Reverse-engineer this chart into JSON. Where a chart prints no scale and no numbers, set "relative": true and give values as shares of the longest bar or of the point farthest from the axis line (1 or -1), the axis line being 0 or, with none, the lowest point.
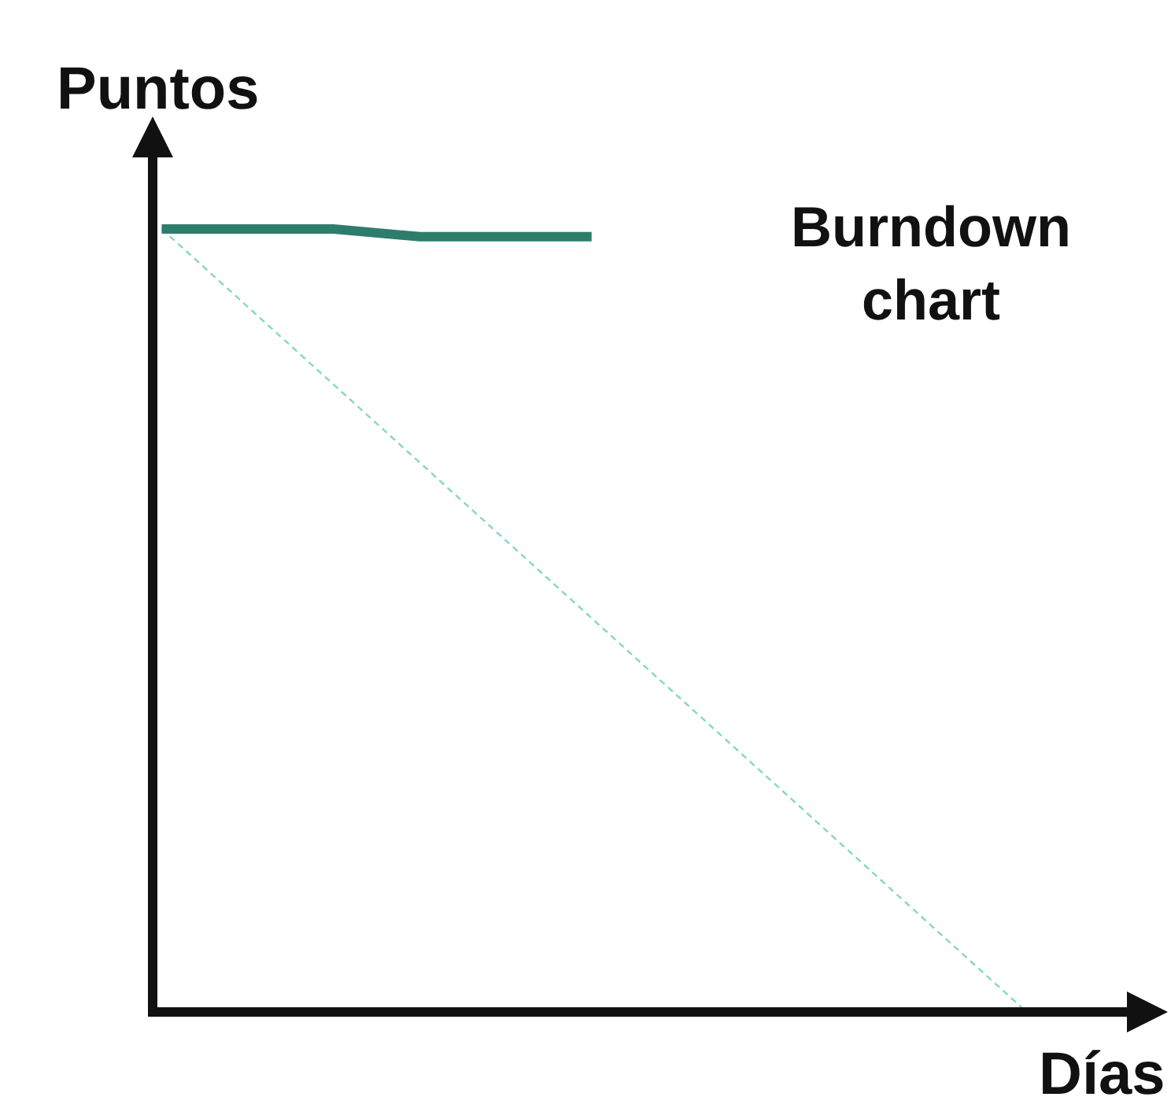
{
  "chart_data": {
    "type": "line",
    "title": "Burndown chart",
    "xlabel": "Días",
    "ylabel": "Puntos",
    "relative": true,
    "marker": "none",
    "categories": [
      null,
      null,
      null,
      null,
      null,
      null,
      null,
      null,
      null,
      null,
      null
    ],
    "series": [
      {
        "color": "#2e7d6b",
        "line_style": "solid",
        "values": [
          1,
          1,
          1,
          0.99,
          0.99,
          0.99,
          null,
          null,
          null,
          null,
          null
        ]
      },
      {
        "color": "#86d9b5",
        "line_style": "dashed",
        "values": [
          1,
          0.9,
          0.8,
          0.7,
          0.6,
          0.5,
          0.4,
          0.3,
          0.2,
          0.1,
          0
        ]
      }
    ]
  }
}
